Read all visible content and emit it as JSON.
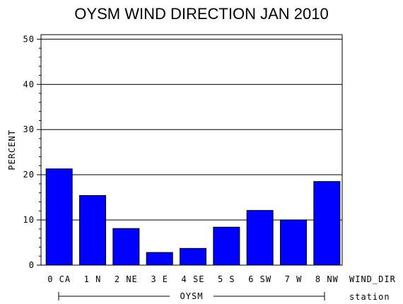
{
  "chart_data": {
    "type": "bar",
    "title": "OYSM WIND DIRECTION JAN 2010",
    "ylabel": "PERCENT",
    "xlabel": "WIND_DIR",
    "group_label": "station",
    "group_value": "OYSM",
    "categories": [
      "0 CA",
      "1 N",
      "2 NE",
      "3 E",
      "4 SE",
      "5 S",
      "6 SW",
      "7 W",
      "8 NW"
    ],
    "values": [
      21.3,
      15.4,
      8.1,
      2.8,
      3.7,
      8.4,
      12.1,
      10.0,
      18.5
    ],
    "ylim": [
      0,
      51
    ],
    "yticks": [
      0,
      10,
      20,
      30,
      40,
      50
    ],
    "grid": true,
    "bar_color": "#0000ff"
  }
}
